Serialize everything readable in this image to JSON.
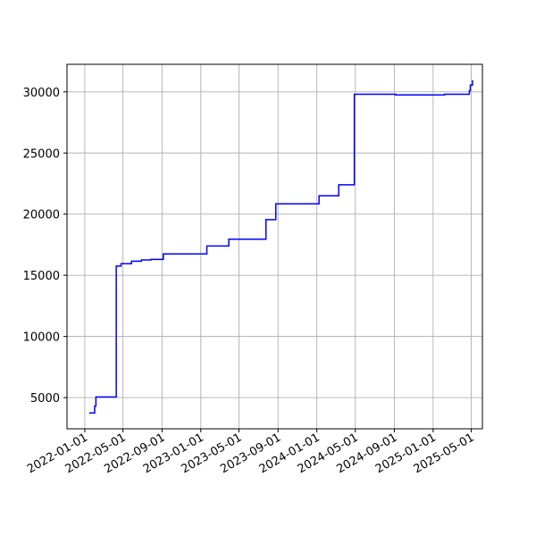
{
  "chart_data": {
    "type": "line",
    "title": "",
    "xlabel": "",
    "ylabel": "",
    "x_type": "date",
    "xlim": [
      "2021-11-06",
      "2025-06-05"
    ],
    "ylim": [
      2450,
      32250
    ],
    "grid": true,
    "x_ticks": [
      "2022-01-01",
      "2022-05-01",
      "2022-09-01",
      "2023-01-01",
      "2023-05-01",
      "2023-09-01",
      "2024-01-01",
      "2024-05-01",
      "2024-09-01",
      "2025-01-01",
      "2025-05-01"
    ],
    "y_ticks": [
      5000,
      10000,
      15000,
      20000,
      25000,
      30000
    ],
    "series": [
      {
        "color": "#0000ff",
        "step": "post",
        "points": [
          {
            "x": "2022-01-15",
            "y": 3750
          },
          {
            "x": "2022-02-01",
            "y": 4300
          },
          {
            "x": "2022-02-05",
            "y": 5050
          },
          {
            "x": "2022-04-10",
            "y": 15750
          },
          {
            "x": "2022-04-25",
            "y": 15950
          },
          {
            "x": "2022-05-28",
            "y": 16150
          },
          {
            "x": "2022-06-28",
            "y": 16250
          },
          {
            "x": "2022-07-28",
            "y": 16300
          },
          {
            "x": "2022-09-05",
            "y": 16750
          },
          {
            "x": "2023-01-20",
            "y": 17400
          },
          {
            "x": "2023-03-30",
            "y": 17950
          },
          {
            "x": "2023-07-25",
            "y": 19550
          },
          {
            "x": "2023-08-25",
            "y": 20850
          },
          {
            "x": "2024-01-08",
            "y": 21500
          },
          {
            "x": "2024-03-10",
            "y": 22400
          },
          {
            "x": "2024-04-28",
            "y": 29800
          },
          {
            "x": "2024-09-05",
            "y": 29750
          },
          {
            "x": "2025-02-06",
            "y": 29800
          },
          {
            "x": "2025-04-25",
            "y": 30100
          },
          {
            "x": "2025-04-28",
            "y": 30550
          },
          {
            "x": "2025-05-05",
            "y": 30900
          },
          {
            "x": "2025-05-07",
            "y": 30900
          }
        ]
      }
    ]
  }
}
